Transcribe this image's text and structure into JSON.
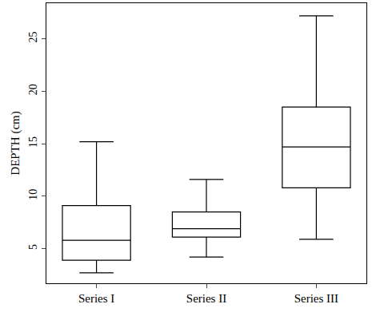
{
  "chart_data": {
    "type": "box",
    "y_label": "DEPTH (cm)",
    "categories": [
      "Series I",
      "Series II",
      "Series III"
    ],
    "min": [
      2.7,
      4.2,
      5.9
    ],
    "q1": [
      3.9,
      6.1,
      10.8
    ],
    "median": [
      5.8,
      6.9,
      14.7
    ],
    "q3": [
      9.1,
      8.5,
      18.5
    ],
    "max": [
      15.2,
      11.6,
      27.2
    ],
    "color": "#000000",
    "ylim": [
      1.7,
      28.4
    ],
    "yticks": [
      5,
      10,
      15,
      20,
      25
    ],
    "grid": false
  }
}
